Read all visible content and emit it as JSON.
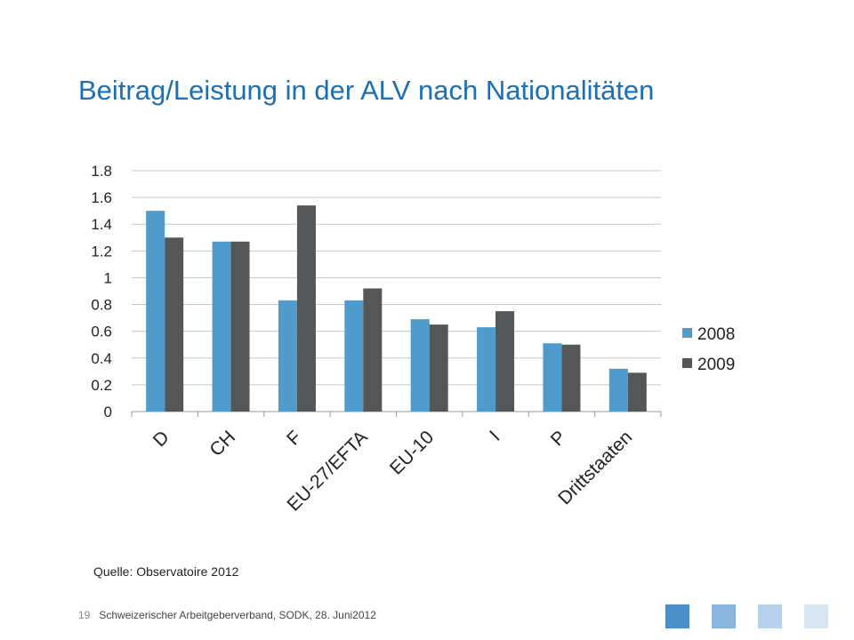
{
  "title": "Beitrag/Leistung in der ALV nach Nationalitäten",
  "source": "Quelle: Observatoire 2012",
  "footer": {
    "page_number": "19",
    "text": "Schweizerischer Arbeitgeberverband, SODK, 28. Juni2012"
  },
  "footer_squares": [
    "#4a8fc7",
    "#8ab6dd",
    "#b6d1ea",
    "#d8e6f4"
  ],
  "chart_data": {
    "type": "bar",
    "categories": [
      "D",
      "CH",
      "F",
      "EU-27/EFTA",
      "EU-10",
      "I",
      "P",
      "Drittstaaten"
    ],
    "series": [
      {
        "name": "2008",
        "color": "#4f9bcc",
        "values": [
          1.5,
          1.27,
          0.83,
          0.83,
          0.69,
          0.63,
          0.51,
          0.32
        ]
      },
      {
        "name": "2009",
        "color": "#555658",
        "values": [
          1.3,
          1.27,
          1.54,
          0.92,
          0.65,
          0.75,
          0.5,
          0.29
        ]
      }
    ],
    "ylim": [
      0,
      1.8
    ],
    "yticks": [
      "0",
      "0.2",
      "0.4",
      "0.6",
      "0.8",
      "1",
      "1.2",
      "1.4",
      "1.6",
      "1.8"
    ],
    "grid": true,
    "legend": "right"
  }
}
